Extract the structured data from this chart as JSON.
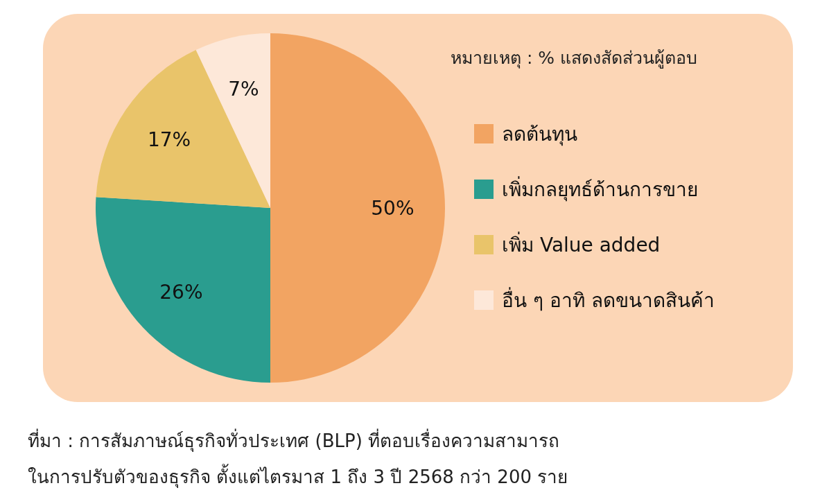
{
  "chart_data": {
    "type": "pie",
    "categories": [
      "ลดต้นทุน",
      "เพิ่มกลยุทธ์ด้านการขาย",
      "เพิ่ม Value added",
      "อื่น ๆ อาทิ ลดขนาดสินค้า"
    ],
    "values": [
      50,
      26,
      17,
      7
    ],
    "value_labels": [
      "50%",
      "26%",
      "17%",
      "7%"
    ],
    "colors": [
      "#f2a462",
      "#2a9d8f",
      "#e9c46a",
      "#fde8d9"
    ],
    "legend": "right",
    "annotations": [
      "หมายเหตุ : % แสดงสัดส่วนผู้ตอบ",
      "ที่มา : การสัมภาษณ์ธุรกิจทั่วประเทศ (BLP) ที่ตอบเรื่องความสามารถ",
      "ในการปรับตัวของธุรกิจ ตั้งแต่ไตรมาส 1 ถึง 3 ปี 2568 กว่า 200 ราย"
    ]
  }
}
